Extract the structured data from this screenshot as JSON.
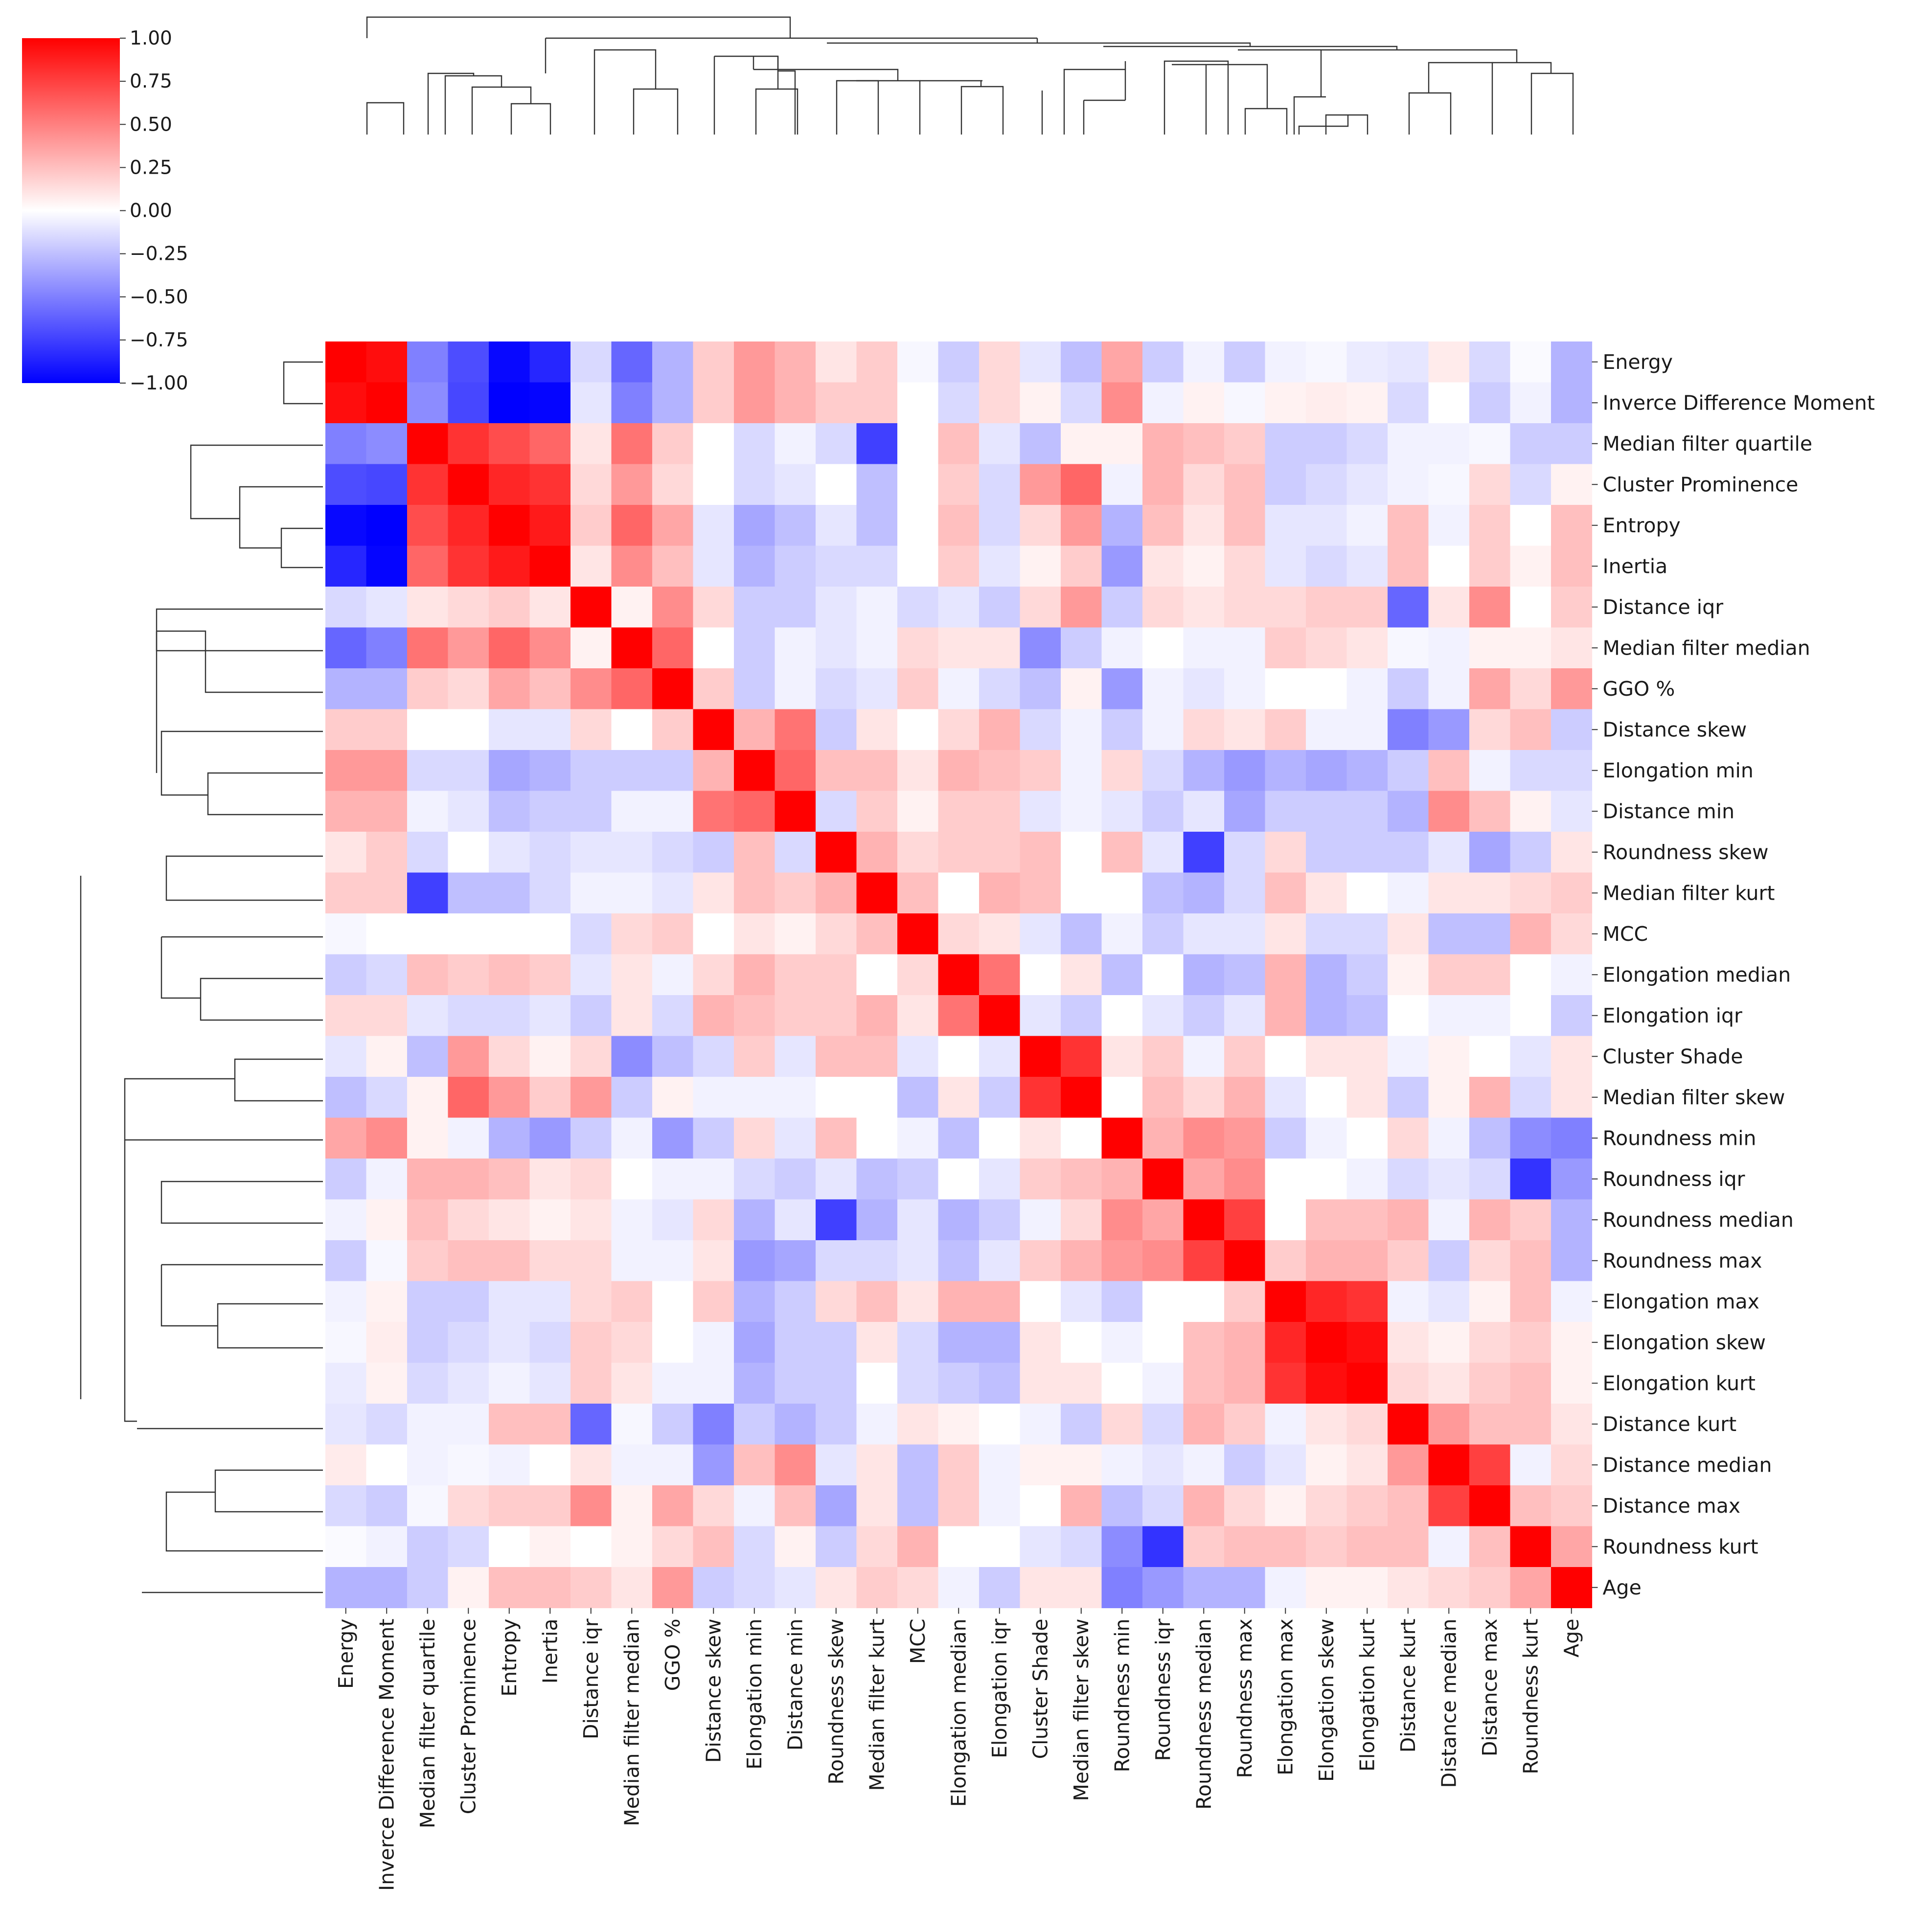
{
  "chart_data": {
    "type": "heatmap",
    "title": "",
    "subtitle": "",
    "description_kind": "clustermap",
    "colormap": {
      "name": "bwr",
      "low": "#0000ff",
      "mid": "#ffffff",
      "high": "#ff0000"
    },
    "colorbar": {
      "min": -1.0,
      "max": 1.0,
      "ticks": [
        "1.00",
        "0.75",
        "0.50",
        "0.25",
        "0.00",
        "−0.25",
        "−0.50",
        "−0.75",
        "−1.00"
      ]
    },
    "variables": [
      "Energy",
      "Inverce Difference Moment",
      "Median filter quartile",
      "Cluster Prominence",
      "Entropy",
      "Inertia",
      "Distance iqr",
      "Median filter median",
      "GGO %",
      "Distance skew",
      "Elongation min",
      "Distance min",
      "Roundness skew",
      "Median filter kurt",
      "MCC",
      "Elongation median",
      "Elongation iqr",
      "Cluster Shade",
      "Median filter skew",
      "Roundness min",
      "Roundness iqr",
      "Roundness median",
      "Roundness max",
      "Elongation max",
      "Elongation skew",
      "Elongation kurt",
      "Distance kurt",
      "Distance median",
      "Distance max",
      "Roundness kurt",
      "Age"
    ],
    "matrix": [
      [
        1.0,
        0.95,
        -0.5,
        -0.7,
        -0.97,
        -0.85,
        -0.15,
        -0.6,
        -0.3,
        0.2,
        0.4,
        0.3,
        0.1,
        0.2,
        -0.03,
        -0.2,
        0.15,
        -0.1,
        -0.25,
        0.35,
        -0.2,
        -0.05,
        -0.2,
        -0.05,
        -0.03,
        -0.08,
        -0.1,
        0.08,
        -0.15,
        -0.02,
        -0.3
      ],
      [
        0.95,
        1.0,
        -0.45,
        -0.72,
        -1.0,
        -0.98,
        -0.1,
        -0.5,
        -0.3,
        0.2,
        0.4,
        0.3,
        0.2,
        0.2,
        0.0,
        -0.15,
        0.15,
        0.05,
        -0.15,
        0.45,
        -0.05,
        0.05,
        -0.03,
        0.05,
        0.07,
        0.05,
        -0.15,
        0.0,
        -0.2,
        -0.05,
        -0.3
      ],
      [
        -0.5,
        -0.45,
        1.0,
        0.8,
        0.7,
        0.6,
        0.1,
        0.55,
        0.2,
        0.0,
        -0.15,
        -0.05,
        -0.15,
        -0.75,
        0.0,
        0.25,
        -0.1,
        -0.25,
        0.05,
        0.05,
        0.3,
        0.25,
        0.2,
        -0.2,
        -0.2,
        -0.15,
        -0.05,
        -0.05,
        -0.03,
        -0.2,
        -0.2
      ],
      [
        -0.7,
        -0.72,
        0.8,
        1.0,
        0.85,
        0.8,
        0.15,
        0.4,
        0.15,
        0.0,
        -0.15,
        -0.1,
        0.0,
        -0.25,
        0.0,
        0.2,
        -0.15,
        0.4,
        0.6,
        -0.05,
        0.3,
        0.15,
        0.25,
        -0.2,
        -0.15,
        -0.1,
        -0.05,
        -0.03,
        0.15,
        -0.15,
        0.05
      ],
      [
        -0.97,
        -1.0,
        0.7,
        0.85,
        1.0,
        0.9,
        0.2,
        0.6,
        0.35,
        -0.1,
        -0.35,
        -0.25,
        -0.1,
        -0.25,
        0.0,
        0.25,
        -0.15,
        0.15,
        0.4,
        -0.3,
        0.25,
        0.1,
        0.25,
        -0.1,
        -0.1,
        -0.05,
        0.25,
        -0.05,
        0.2,
        0.0,
        0.25
      ],
      [
        -0.85,
        -0.98,
        0.6,
        0.8,
        0.9,
        1.0,
        0.1,
        0.45,
        0.25,
        -0.1,
        -0.3,
        -0.2,
        -0.15,
        -0.15,
        0.0,
        0.2,
        -0.1,
        0.05,
        0.2,
        -0.4,
        0.1,
        0.05,
        0.15,
        -0.1,
        -0.15,
        -0.1,
        0.25,
        0.0,
        0.2,
        0.05,
        0.25
      ],
      [
        -0.15,
        -0.1,
        0.1,
        0.15,
        0.2,
        0.1,
        1.0,
        0.05,
        0.45,
        0.15,
        -0.2,
        -0.2,
        -0.1,
        -0.05,
        -0.15,
        -0.1,
        -0.2,
        0.15,
        0.4,
        -0.2,
        0.15,
        0.1,
        0.15,
        0.15,
        0.2,
        0.2,
        -0.6,
        0.1,
        0.45,
        0.0,
        0.2
      ],
      [
        -0.6,
        -0.5,
        0.55,
        0.4,
        0.6,
        0.45,
        0.05,
        1.0,
        0.6,
        0.0,
        -0.2,
        -0.05,
        -0.1,
        -0.05,
        0.15,
        0.1,
        0.1,
        -0.45,
        -0.2,
        -0.05,
        0.0,
        -0.05,
        -0.05,
        0.2,
        0.15,
        0.1,
        -0.03,
        -0.05,
        0.05,
        0.05,
        0.1
      ],
      [
        -0.3,
        -0.3,
        0.2,
        0.15,
        0.35,
        0.25,
        0.45,
        0.6,
        1.0,
        0.2,
        -0.2,
        -0.05,
        -0.15,
        -0.1,
        0.2,
        -0.05,
        -0.15,
        -0.25,
        0.05,
        -0.4,
        -0.05,
        -0.1,
        -0.05,
        0.0,
        0.0,
        -0.05,
        -0.2,
        -0.05,
        0.35,
        0.15,
        0.4
      ],
      [
        0.2,
        0.2,
        0.0,
        0.0,
        -0.1,
        -0.1,
        0.15,
        0.0,
        0.2,
        1.0,
        0.3,
        0.55,
        -0.2,
        0.1,
        0.0,
        0.15,
        0.3,
        -0.15,
        -0.05,
        -0.2,
        -0.05,
        0.15,
        0.1,
        0.2,
        -0.05,
        -0.05,
        -0.5,
        -0.4,
        0.15,
        0.25,
        -0.2
      ],
      [
        0.4,
        0.4,
        -0.15,
        -0.15,
        -0.35,
        -0.3,
        -0.2,
        -0.2,
        -0.2,
        0.3,
        1.0,
        0.6,
        0.25,
        0.25,
        0.1,
        0.3,
        0.25,
        0.2,
        -0.05,
        0.15,
        -0.15,
        -0.3,
        -0.4,
        -0.3,
        -0.35,
        -0.3,
        -0.2,
        0.25,
        -0.05,
        -0.15,
        -0.15
      ],
      [
        0.3,
        0.3,
        -0.05,
        -0.1,
        -0.25,
        -0.2,
        -0.2,
        -0.05,
        -0.05,
        0.55,
        0.6,
        1.0,
        -0.15,
        0.2,
        0.05,
        0.2,
        0.2,
        -0.1,
        -0.05,
        -0.1,
        -0.2,
        -0.1,
        -0.35,
        -0.2,
        -0.2,
        -0.2,
        -0.3,
        0.45,
        0.25,
        0.05,
        -0.1
      ],
      [
        0.1,
        0.2,
        -0.15,
        0.0,
        -0.1,
        -0.15,
        -0.1,
        -0.1,
        -0.15,
        -0.2,
        0.25,
        -0.15,
        1.0,
        0.3,
        0.15,
        0.2,
        0.2,
        0.25,
        0.0,
        0.25,
        -0.1,
        -0.75,
        -0.15,
        0.15,
        -0.2,
        -0.2,
        -0.2,
        -0.1,
        -0.35,
        -0.2,
        0.1
      ],
      [
        0.2,
        0.2,
        -0.75,
        -0.25,
        -0.25,
        -0.15,
        -0.05,
        -0.05,
        -0.1,
        0.1,
        0.25,
        0.2,
        0.3,
        1.0,
        0.25,
        0.0,
        0.3,
        0.25,
        0.0,
        0.0,
        -0.25,
        -0.3,
        -0.15,
        0.25,
        0.1,
        0.0,
        -0.05,
        0.1,
        0.1,
        0.15,
        0.2
      ],
      [
        -0.03,
        0.0,
        0.0,
        0.0,
        0.0,
        0.0,
        -0.15,
        0.15,
        0.2,
        0.0,
        0.1,
        0.05,
        0.15,
        0.25,
        1.0,
        0.15,
        0.1,
        -0.1,
        -0.25,
        -0.05,
        -0.2,
        -0.1,
        -0.1,
        0.1,
        -0.15,
        -0.15,
        0.1,
        -0.25,
        -0.25,
        0.3,
        0.15
      ],
      [
        -0.2,
        -0.15,
        0.25,
        0.2,
        0.25,
        0.2,
        -0.1,
        0.1,
        -0.05,
        0.15,
        0.3,
        0.2,
        0.2,
        0.0,
        0.15,
        1.0,
        0.55,
        0.0,
        0.1,
        -0.25,
        0.0,
        -0.3,
        -0.25,
        0.3,
        -0.3,
        -0.2,
        0.05,
        0.2,
        0.2,
        0.0,
        -0.05
      ],
      [
        0.15,
        0.15,
        -0.1,
        -0.15,
        -0.15,
        -0.1,
        -0.2,
        0.1,
        -0.15,
        0.3,
        0.25,
        0.2,
        0.2,
        0.3,
        0.1,
        0.55,
        1.0,
        -0.1,
        -0.2,
        0.0,
        -0.1,
        -0.2,
        -0.1,
        0.3,
        -0.3,
        -0.25,
        0.0,
        -0.05,
        -0.05,
        0.0,
        -0.2
      ],
      [
        -0.1,
        0.05,
        -0.25,
        0.4,
        0.15,
        0.05,
        0.15,
        -0.45,
        -0.25,
        -0.15,
        0.2,
        -0.1,
        0.25,
        0.25,
        -0.1,
        0.0,
        -0.1,
        1.0,
        0.8,
        0.1,
        0.2,
        -0.05,
        0.2,
        0.0,
        0.1,
        0.1,
        -0.05,
        0.05,
        0.0,
        -0.1,
        0.1
      ],
      [
        -0.25,
        -0.15,
        0.05,
        0.6,
        0.4,
        0.2,
        0.4,
        -0.2,
        0.05,
        -0.05,
        -0.05,
        -0.05,
        0.0,
        0.0,
        -0.25,
        0.1,
        -0.2,
        0.8,
        1.0,
        0.0,
        0.25,
        0.15,
        0.3,
        -0.1,
        0.0,
        0.1,
        -0.2,
        0.05,
        0.3,
        -0.15,
        0.1
      ],
      [
        0.35,
        0.45,
        0.05,
        -0.05,
        -0.3,
        -0.4,
        -0.2,
        -0.05,
        -0.4,
        -0.2,
        0.15,
        -0.1,
        0.25,
        0.0,
        -0.05,
        -0.25,
        0.0,
        0.1,
        0.0,
        1.0,
        0.3,
        0.45,
        0.4,
        -0.2,
        -0.05,
        0.0,
        0.15,
        -0.05,
        -0.25,
        -0.45,
        -0.5
      ],
      [
        -0.2,
        -0.05,
        0.3,
        0.3,
        0.25,
        0.1,
        0.15,
        0.0,
        -0.05,
        -0.05,
        -0.15,
        -0.2,
        -0.1,
        -0.25,
        -0.2,
        0.0,
        -0.1,
        0.2,
        0.25,
        0.3,
        1.0,
        0.35,
        0.45,
        0.0,
        0.0,
        -0.05,
        -0.15,
        -0.1,
        -0.15,
        -0.8,
        -0.4
      ],
      [
        -0.05,
        0.05,
        0.25,
        0.15,
        0.1,
        0.05,
        0.1,
        -0.05,
        -0.1,
        0.15,
        -0.3,
        -0.1,
        -0.75,
        -0.3,
        -0.1,
        -0.3,
        -0.2,
        -0.05,
        0.15,
        0.45,
        0.35,
        1.0,
        0.75,
        0.0,
        0.25,
        0.25,
        0.3,
        -0.05,
        0.3,
        0.2,
        -0.3
      ],
      [
        -0.2,
        -0.03,
        0.2,
        0.25,
        0.25,
        0.15,
        0.15,
        -0.05,
        -0.05,
        0.1,
        -0.4,
        -0.35,
        -0.15,
        -0.15,
        -0.1,
        -0.25,
        -0.1,
        0.2,
        0.3,
        0.4,
        0.45,
        0.75,
        1.0,
        0.2,
        0.3,
        0.3,
        0.2,
        -0.2,
        0.15,
        0.25,
        -0.3
      ],
      [
        -0.05,
        0.05,
        -0.2,
        -0.2,
        -0.1,
        -0.1,
        0.15,
        0.2,
        0.0,
        0.2,
        -0.3,
        -0.2,
        0.15,
        0.25,
        0.1,
        0.3,
        0.3,
        0.0,
        -0.1,
        -0.2,
        0.0,
        0.0,
        0.2,
        1.0,
        0.85,
        0.8,
        -0.05,
        -0.1,
        0.05,
        0.25,
        -0.05
      ],
      [
        -0.03,
        0.07,
        -0.2,
        -0.15,
        -0.1,
        -0.15,
        0.2,
        0.15,
        0.0,
        -0.05,
        -0.35,
        -0.2,
        -0.2,
        0.1,
        -0.15,
        -0.3,
        -0.3,
        0.1,
        0.0,
        -0.05,
        0.0,
        0.25,
        0.3,
        0.85,
        1.0,
        0.95,
        0.1,
        0.05,
        0.15,
        0.2,
        0.05
      ],
      [
        -0.08,
        0.05,
        -0.15,
        -0.1,
        -0.05,
        -0.1,
        0.2,
        0.1,
        -0.05,
        -0.05,
        -0.3,
        -0.2,
        -0.2,
        0.0,
        -0.15,
        -0.2,
        -0.25,
        0.1,
        0.1,
        0.0,
        -0.05,
        0.25,
        0.3,
        0.8,
        0.95,
        1.0,
        0.15,
        0.1,
        0.2,
        0.25,
        0.05
      ],
      [
        -0.1,
        -0.15,
        -0.05,
        -0.05,
        0.25,
        0.25,
        -0.6,
        -0.03,
        -0.2,
        -0.5,
        -0.2,
        -0.3,
        -0.2,
        -0.05,
        0.1,
        0.05,
        0.0,
        -0.05,
        -0.2,
        0.15,
        -0.15,
        0.3,
        0.2,
        -0.05,
        0.1,
        0.15,
        1.0,
        0.4,
        0.25,
        0.25,
        0.1
      ],
      [
        0.08,
        0.0,
        -0.05,
        -0.03,
        -0.05,
        0.0,
        0.1,
        -0.05,
        -0.05,
        -0.4,
        0.25,
        0.45,
        -0.1,
        0.1,
        -0.25,
        0.2,
        -0.05,
        0.05,
        0.05,
        -0.05,
        -0.1,
        -0.05,
        -0.2,
        -0.1,
        0.05,
        0.1,
        0.4,
        1.0,
        0.75,
        -0.05,
        0.15
      ],
      [
        -0.15,
        -0.2,
        -0.03,
        0.15,
        0.2,
        0.2,
        0.45,
        0.05,
        0.35,
        0.15,
        -0.05,
        0.25,
        -0.35,
        0.1,
        -0.25,
        0.2,
        -0.05,
        0.0,
        0.3,
        -0.25,
        -0.15,
        0.3,
        0.15,
        0.05,
        0.15,
        0.2,
        0.25,
        0.75,
        1.0,
        0.25,
        0.2
      ],
      [
        -0.02,
        -0.05,
        -0.2,
        -0.15,
        0.0,
        0.05,
        0.0,
        0.05,
        0.15,
        0.25,
        -0.15,
        0.05,
        -0.2,
        0.15,
        0.3,
        0.0,
        0.0,
        -0.1,
        -0.15,
        -0.45,
        -0.8,
        0.2,
        0.25,
        0.25,
        0.2,
        0.25,
        0.25,
        -0.05,
        0.25,
        1.0,
        0.35
      ],
      [
        -0.3,
        -0.3,
        -0.2,
        0.05,
        0.25,
        0.25,
        0.2,
        0.1,
        0.4,
        -0.2,
        -0.15,
        -0.1,
        0.1,
        0.2,
        0.15,
        -0.05,
        -0.2,
        0.1,
        0.1,
        -0.5,
        -0.4,
        -0.3,
        -0.3,
        -0.05,
        0.05,
        0.05,
        0.1,
        0.15,
        0.2,
        0.35,
        1.0
      ]
    ]
  }
}
